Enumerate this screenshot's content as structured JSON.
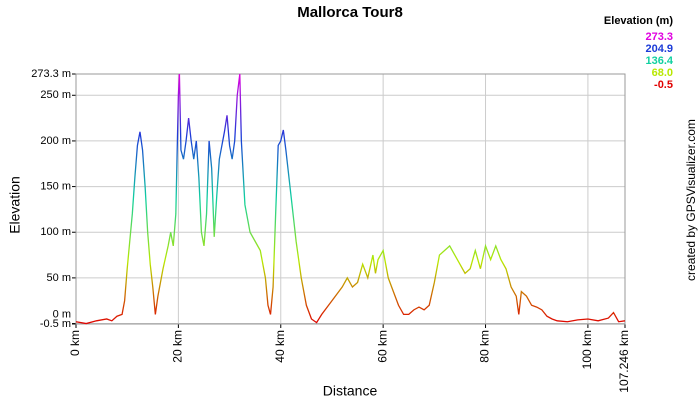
{
  "chart_data": {
    "type": "line",
    "title": "Mallorca Tour8",
    "x_label": "Distance",
    "y_label": "Elevation",
    "credit": "created by GPSVisualizer.com",
    "legend_title": "Elevation (m)",
    "legend": [
      {
        "value": 273.3,
        "label": "273.3",
        "color": "#e000e0"
      },
      {
        "value": 204.9,
        "label": "204.9",
        "color": "#1c3cd8"
      },
      {
        "value": 136.4,
        "label": "136.4",
        "color": "#10d0a0"
      },
      {
        "value": 68,
        "label": "68.0",
        "color": "#b8e800"
      },
      {
        "value": -0.5,
        "label": "-0.5",
        "color": "#e00000"
      }
    ],
    "xlim": [
      0,
      107.246
    ],
    "ylim": [
      -0.5,
      273.3
    ],
    "xticks": [
      {
        "value": 0,
        "label": "0 km"
      },
      {
        "value": 20,
        "label": "20 km"
      },
      {
        "value": 40,
        "label": "40 km"
      },
      {
        "value": 60,
        "label": "60 km"
      },
      {
        "value": 80,
        "label": "80 km"
      },
      {
        "value": 100,
        "label": "100 km"
      },
      {
        "value": 107.246,
        "label": "107.246 km"
      }
    ],
    "yticks": [
      {
        "value": -0.5,
        "label": "-0.5 m"
      },
      {
        "value": 0,
        "label": "0 m"
      },
      {
        "value": 50,
        "label": "50 m"
      },
      {
        "value": 100,
        "label": "100 m"
      },
      {
        "value": 150,
        "label": "150 m"
      },
      {
        "value": 200,
        "label": "200 m"
      },
      {
        "value": 250,
        "label": "250 m"
      },
      {
        "value": 273.3,
        "label": "273.3 m"
      }
    ],
    "grid": true,
    "series": [
      {
        "name": "Elevation",
        "x": [
          0,
          2,
          4,
          6,
          7,
          8,
          9,
          9.5,
          10,
          11,
          11.5,
          12,
          12.5,
          13,
          13.5,
          14,
          14.5,
          15,
          15.5,
          16,
          17,
          18,
          18.5,
          19,
          19.5,
          20,
          20.2,
          20.5,
          21,
          21.5,
          22,
          22.5,
          23,
          23.5,
          24,
          24.5,
          25,
          25.5,
          26,
          26.5,
          27,
          27.5,
          28,
          29,
          29.5,
          30,
          30.5,
          31,
          31.5,
          32,
          32.3,
          33,
          34,
          35,
          36,
          37,
          37.5,
          38,
          38.5,
          39,
          39.5,
          40,
          40.5,
          41,
          42,
          43,
          44,
          45,
          46,
          47,
          48,
          50,
          52,
          53,
          54,
          55,
          56,
          57,
          58,
          58.5,
          59,
          60,
          61,
          62,
          63,
          64,
          65,
          66,
          67,
          68,
          69,
          70,
          71,
          72,
          73,
          74,
          75,
          76,
          77,
          78,
          79,
          80,
          81,
          82,
          83,
          84,
          85,
          86,
          86.5,
          87,
          88,
          89,
          90,
          91,
          92,
          93,
          94,
          96,
          98,
          100,
          102,
          104,
          105,
          106,
          107.246
        ],
        "values": [
          2,
          0,
          3,
          5,
          3,
          8,
          10,
          25,
          60,
          120,
          160,
          195,
          210,
          190,
          150,
          100,
          65,
          40,
          10,
          30,
          60,
          85,
          100,
          85,
          120,
          250,
          273.3,
          190,
          180,
          200,
          225,
          200,
          180,
          200,
          160,
          100,
          85,
          120,
          200,
          170,
          95,
          140,
          180,
          210,
          228,
          195,
          180,
          200,
          250,
          273.3,
          200,
          130,
          100,
          90,
          80,
          50,
          20,
          10,
          40,
          120,
          195,
          200,
          212,
          190,
          140,
          90,
          50,
          20,
          5,
          1,
          10,
          25,
          40,
          50,
          40,
          45,
          65,
          50,
          75,
          55,
          70,
          80,
          50,
          35,
          20,
          10,
          10,
          15,
          18,
          15,
          20,
          45,
          75,
          80,
          85,
          75,
          65,
          55,
          60,
          80,
          60,
          85,
          70,
          85,
          70,
          60,
          40,
          30,
          10,
          35,
          30,
          20,
          18,
          15,
          8,
          5,
          3,
          2,
          4,
          5,
          3,
          6,
          12,
          2,
          3
        ]
      }
    ]
  }
}
